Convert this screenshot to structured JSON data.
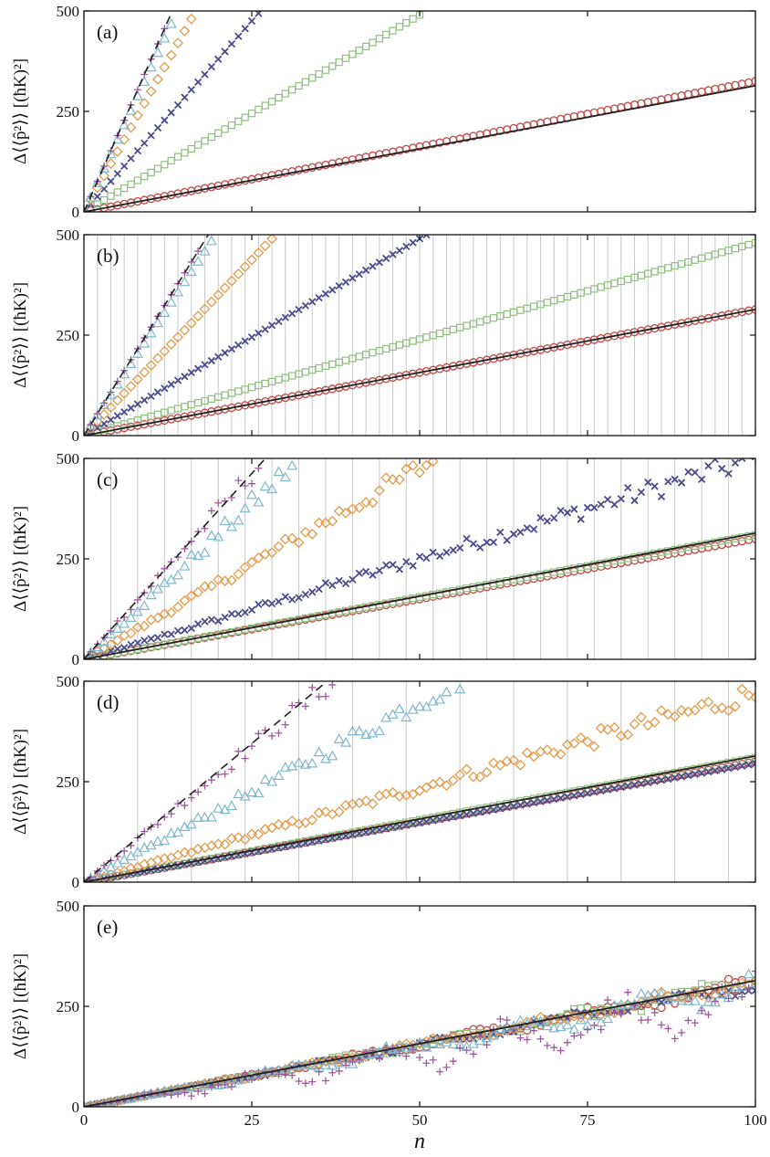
{
  "figure": {
    "x_axis_label": "n",
    "y_axis_label": "Δ⟨⟨p̂²⟩⟩ [(ħK)²]"
  },
  "series_styles": {
    "circle": "#c0504d",
    "square": "#8fbf7f",
    "cross": "#4b4a8c",
    "diamond": "#e39a4b",
    "triangle": "#7fb8cf",
    "plus": "#9c5a9a",
    "dashed": "#222222",
    "solid": "#222222"
  },
  "chart_data": [
    {
      "type": "scatter",
      "panel_label": "(a)",
      "xlim": [
        0,
        100
      ],
      "ylim": [
        0,
        500
      ],
      "x_ticks": [
        "0",
        "25",
        "50",
        "75",
        "100"
      ],
      "y_ticks": [
        "0",
        "250",
        "500"
      ],
      "vertical_lines": [],
      "series": [
        {
          "marker": "circle",
          "slope": 3.25,
          "x_max": 100
        },
        {
          "marker": "square",
          "slope": 9.8,
          "x_max": 50
        },
        {
          "marker": "cross",
          "slope": 19.0,
          "x_max": 26
        },
        {
          "marker": "diamond",
          "slope": 30.0,
          "x_max": 16
        },
        {
          "marker": "triangle",
          "slope": 36.0,
          "x_max": 13
        },
        {
          "marker": "plus",
          "slope": 38.0,
          "x_max": 12
        }
      ],
      "lines": [
        {
          "style": "solid",
          "slope": 3.14,
          "x_max": 100
        },
        {
          "style": "dashed",
          "slope": 38.0,
          "x_max": 13
        }
      ]
    },
    {
      "type": "scatter",
      "panel_label": "(b)",
      "xlim": [
        0,
        100
      ],
      "ylim": [
        0,
        500
      ],
      "x_ticks": [
        "0",
        "25",
        "50",
        "75",
        "100"
      ],
      "y_ticks": [
        "0",
        "250",
        "500"
      ],
      "vertical_lines": [
        2,
        4,
        6,
        8,
        10,
        12,
        14,
        16,
        18,
        20,
        22,
        24,
        26,
        28,
        30,
        32,
        34,
        36,
        38,
        40,
        42,
        44,
        46,
        48,
        50,
        52,
        54,
        56,
        58,
        60,
        62,
        64,
        66,
        68,
        70,
        72,
        74,
        76,
        78,
        80,
        82,
        84,
        86,
        88,
        90,
        92,
        94,
        96,
        98
      ],
      "series": [
        {
          "marker": "circle",
          "slope": 3.14,
          "x_max": 100
        },
        {
          "marker": "square",
          "slope": 4.8,
          "x_max": 100
        },
        {
          "marker": "cross",
          "slope": 9.8,
          "x_max": 51
        },
        {
          "marker": "diamond",
          "slope": 17.5,
          "x_max": 28
        },
        {
          "marker": "triangle",
          "slope": 25.5,
          "x_max": 20
        },
        {
          "marker": "plus",
          "slope": 27.0,
          "x_max": 17
        }
      ],
      "lines": [
        {
          "style": "solid",
          "slope": 3.14,
          "x_max": 100
        },
        {
          "style": "dashed",
          "slope": 27.0,
          "x_max": 19
        }
      ]
    },
    {
      "type": "scatter",
      "panel_label": "(c)",
      "xlim": [
        0,
        100
      ],
      "ylim": [
        0,
        500
      ],
      "x_ticks": [
        "0",
        "25",
        "50",
        "75",
        "100"
      ],
      "y_ticks": [
        "0",
        "250",
        "500"
      ],
      "vertical_lines": [
        4,
        8,
        12,
        16,
        20,
        24,
        28,
        32,
        36,
        40,
        44,
        48,
        52,
        56,
        60,
        64,
        68,
        72,
        76,
        80,
        84,
        88,
        92,
        96
      ],
      "series": [
        {
          "marker": "circle",
          "slope": 3.0,
          "x_max": 100
        },
        {
          "marker": "square",
          "slope": 3.1,
          "x_max": 100
        },
        {
          "marker": "cross",
          "slope": 5.0,
          "x_max": 100
        },
        {
          "marker": "diamond",
          "slope": 9.5,
          "x_max": 52
        },
        {
          "marker": "triangle",
          "slope": 15.5,
          "x_max": 32
        },
        {
          "marker": "plus",
          "slope": 18.5,
          "x_max": 26
        }
      ],
      "lines": [
        {
          "style": "solid",
          "slope": 3.14,
          "x_max": 100
        },
        {
          "style": "dashed",
          "slope": 18.5,
          "x_max": 27
        }
      ]
    },
    {
      "type": "scatter",
      "panel_label": "(d)",
      "xlim": [
        0,
        100
      ],
      "ylim": [
        0,
        500
      ],
      "x_ticks": [
        "0",
        "25",
        "50",
        "75",
        "100"
      ],
      "y_ticks": [
        "0",
        "250",
        "500"
      ],
      "vertical_lines": [
        8,
        16,
        24,
        32,
        40,
        48,
        56,
        64,
        72,
        80,
        88,
        96
      ],
      "series": [
        {
          "marker": "circle",
          "slope": 3.0,
          "x_max": 100
        },
        {
          "marker": "square",
          "slope": 3.1,
          "x_max": 100
        },
        {
          "marker": "cross",
          "slope": 2.95,
          "x_max": 100
        },
        {
          "marker": "diamond",
          "slope": 4.7,
          "x_max": 100
        },
        {
          "marker": "triangle",
          "slope": 9.0,
          "x_max": 57
        },
        {
          "marker": "plus",
          "slope": 13.5,
          "x_max": 37
        }
      ],
      "lines": [
        {
          "style": "solid",
          "slope": 3.14,
          "x_max": 100
        },
        {
          "style": "dashed",
          "slope": 13.8,
          "x_max": 36
        }
      ]
    },
    {
      "type": "scatter",
      "panel_label": "(e)",
      "xlim": [
        0,
        100
      ],
      "ylim": [
        0,
        500
      ],
      "x_ticks": [
        "0",
        "25",
        "50",
        "75",
        "100"
      ],
      "y_ticks": [
        "0",
        "250",
        "500"
      ],
      "vertical_lines": [],
      "series": [
        {
          "marker": "circle",
          "slope": 3.1,
          "x_max": 100
        },
        {
          "marker": "square",
          "slope": 3.1,
          "x_max": 100
        },
        {
          "marker": "cross",
          "slope": 3.05,
          "x_max": 100
        },
        {
          "marker": "diamond",
          "slope": 3.1,
          "x_max": 100
        },
        {
          "marker": "triangle",
          "slope": 3.0,
          "x_max": 100
        },
        {
          "marker": "plus",
          "slope": 2.6,
          "x_max": 100
        }
      ],
      "lines": [
        {
          "style": "solid",
          "slope": 3.14,
          "x_max": 100
        }
      ]
    }
  ]
}
